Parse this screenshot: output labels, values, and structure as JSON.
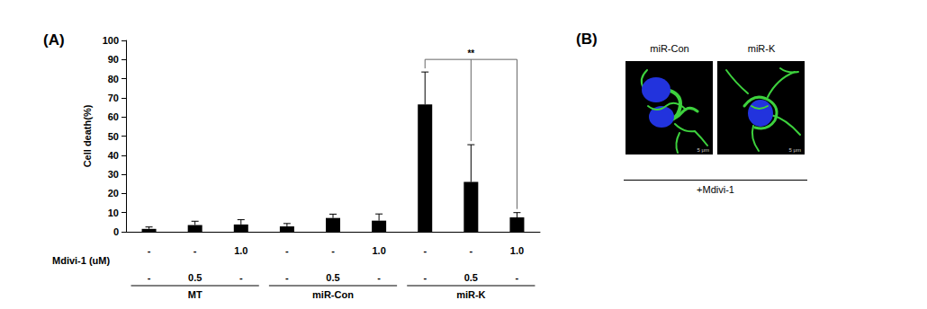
{
  "chart_data": {
    "type": "bar",
    "panel_label": "(A)",
    "y_label": "Cell death(%)",
    "categories": [
      "-\n-",
      "-\n0.5",
      "1.0\n-",
      "-\n-",
      "-\n0.5",
      "1.0\n-",
      "-\n-",
      "-\n0.5",
      "1.0\n-"
    ],
    "row_label": "Mdivi-1 (uM)",
    "groups": [
      "MT",
      "miR-Con",
      "miR-K"
    ],
    "values": [
      1.5,
      3.5,
      3.8,
      2.8,
      7.2,
      5.8,
      66.5,
      26,
      7.5
    ],
    "errors": [
      1,
      2,
      2.5,
      1.5,
      2,
      3.5,
      17,
      19.5,
      2.5
    ],
    "color": "#000000",
    "ylim": [
      0,
      100
    ],
    "yticks": [
      0,
      10,
      20,
      30,
      40,
      50,
      60,
      70,
      80,
      90,
      100
    ],
    "grid": false,
    "significance": [
      {
        "label": "**",
        "positions": [
          6,
          7,
          8
        ]
      }
    ]
  },
  "image_panel": {
    "panel_label": "(B)",
    "images": [
      {
        "label": "miR-Con",
        "scale_bar": "5 μm"
      },
      {
        "label": "miR-K",
        "scale_bar": "5 μm"
      }
    ],
    "treatment": "+Mdivi-1"
  }
}
